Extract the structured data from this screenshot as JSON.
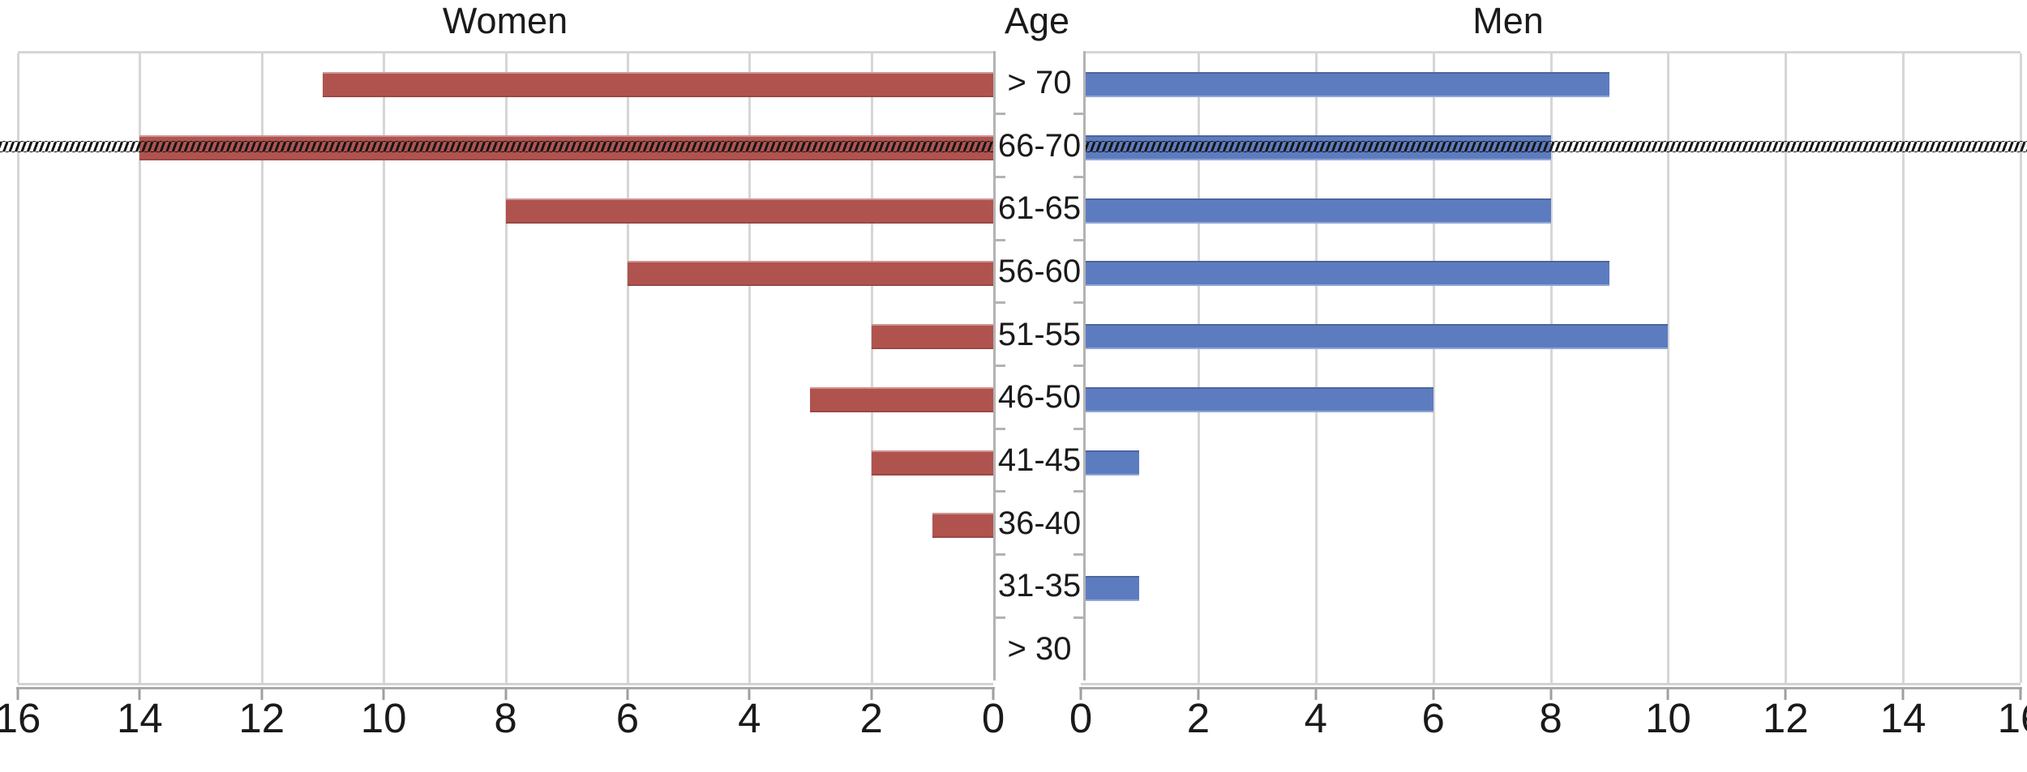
{
  "chart_data": {
    "type": "bar",
    "variant": "population-pyramid",
    "categories": [
      "> 70",
      "66-70",
      "61-65",
      "56-60",
      "51-55",
      "46-50",
      "41-45",
      "36-40",
      "31-35",
      "> 30"
    ],
    "series": [
      {
        "name": "Women",
        "side": "left",
        "color": "#b0534f",
        "values": [
          11,
          14,
          8,
          6,
          2,
          3,
          2,
          1,
          0,
          0
        ]
      },
      {
        "name": "Men",
        "side": "right",
        "color": "#5d7cc0",
        "values": [
          9,
          8,
          8,
          9,
          10,
          6,
          1,
          0,
          1,
          0
        ]
      }
    ],
    "center_axis_label": "Age",
    "x_ticks": [
      0,
      2,
      4,
      6,
      8,
      10,
      12,
      14,
      16
    ],
    "xlim": [
      0,
      16
    ],
    "grid": true,
    "legend": "none",
    "highlight": {
      "category": "66-70",
      "style": "black hatched horizontal line across full width"
    }
  },
  "colors": {
    "women_bar": "#b0534f",
    "men_bar": "#5d7cc0",
    "gridline": "#d6d6d6",
    "axis": "#a9a9a9",
    "text": "#1a1a1a",
    "background": "#ffffff"
  }
}
